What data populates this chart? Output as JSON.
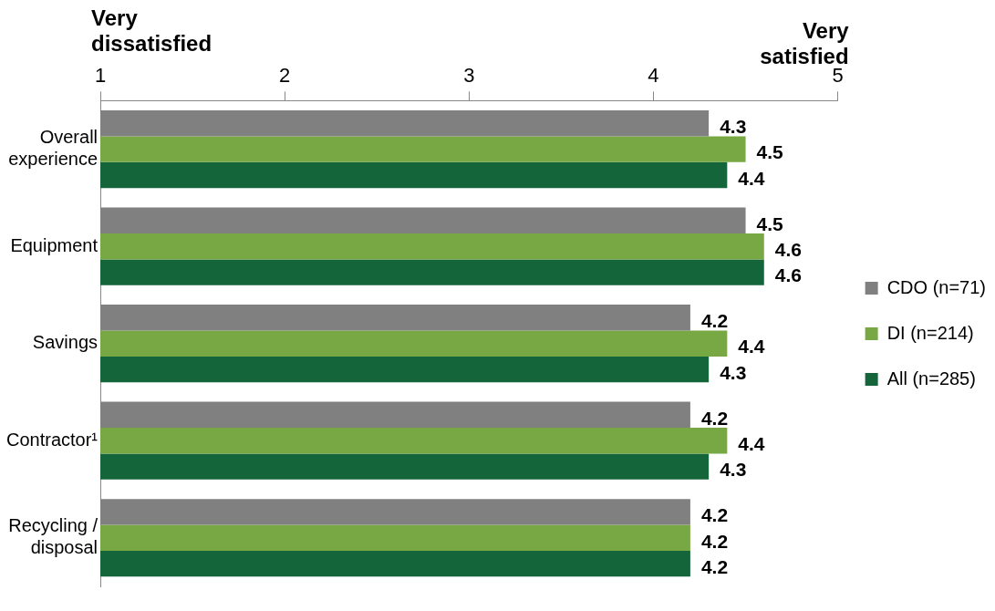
{
  "chart_data": {
    "type": "bar",
    "orientation": "horizontal",
    "categories": [
      "Overall experience",
      "Equipment",
      "Savings",
      "Contractor¹",
      "Recycling / disposal"
    ],
    "series": [
      {
        "name": "CDO (n=71)",
        "color": "#808080",
        "values": [
          4.3,
          4.5,
          4.2,
          4.2,
          4.2
        ]
      },
      {
        "name": "DI (n=214)",
        "color": "#77a844",
        "values": [
          4.5,
          4.6,
          4.4,
          4.4,
          4.2
        ]
      },
      {
        "name": "All (n=285)",
        "color": "#14653a",
        "values": [
          4.4,
          4.6,
          4.3,
          4.3,
          4.2
        ]
      }
    ],
    "xlim": [
      1,
      5
    ],
    "xticks": [
      1,
      2,
      3,
      4,
      5
    ],
    "annotations": [
      "Very dissatisfied",
      "Very satisfied"
    ],
    "data_labels": true,
    "grid": false,
    "legend": "right"
  }
}
